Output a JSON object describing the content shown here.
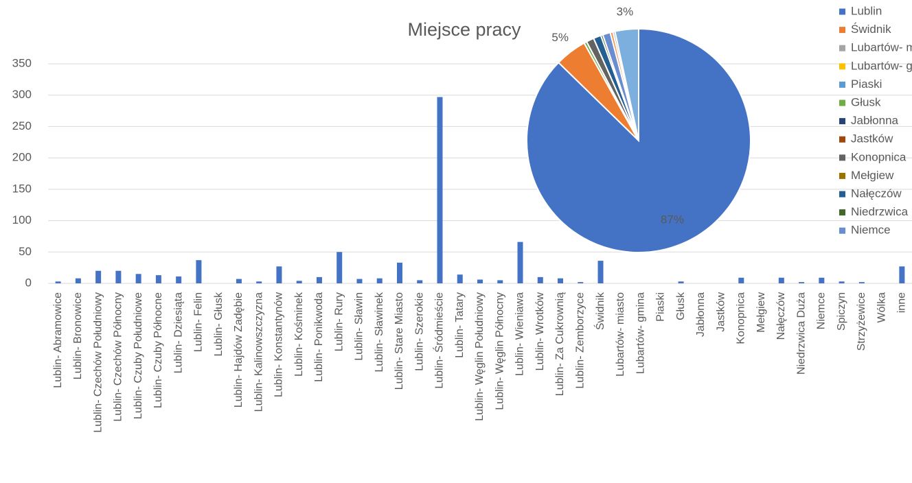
{
  "chart_data": [
    {
      "type": "bar",
      "categories": [
        "Lublin- Abramowice",
        "Lublin- Bronowice",
        "Lublin- Czechów Południowy",
        "Lublin- Czechów Północny",
        "Lublin- Czuby Południowe",
        "Lublin- Czuby Północne",
        "Lublin- Dziesiąta",
        "Lublin- Felin",
        "Lublin- Głusk",
        "Lublin- Hajdów Zadębie",
        "Lublin- Kalinowszczyzna",
        "Lublin- Konstantynów",
        "Lublin- Kośminek",
        "Lublin- Ponikwoda",
        "Lublin- Rury",
        "Lublin- Sławin",
        "Lublin- Sławinek",
        "Lublin- Stare Miasto",
        "Lublin- Szerokie",
        "Lublin- Śródmieście",
        "Lublin- Tatary",
        "Lublin- Węglin Południowy",
        "Lublin- Węglin Północny",
        "Lublin- Wieniawa",
        "Lublin- Wrotków",
        "Lublin- Za Cukrownią",
        "Lublin- Zemborzyce",
        "Świdnik",
        "Lubartów- miasto",
        "Lubartów- gmina",
        "Piaski",
        "Głusk",
        "Jabłonna",
        "Jastków",
        "Konopnica",
        "Mełgiew",
        "Nałęczów",
        "Niedrzwica Duża",
        "Niemce",
        "Spiczyn",
        "Strzyżewice",
        "Wólka",
        "inne"
      ],
      "values": [
        3,
        8,
        20,
        20,
        15,
        13,
        11,
        37,
        0,
        7,
        3,
        27,
        4,
        10,
        50,
        7,
        8,
        33,
        5,
        297,
        14,
        6,
        5,
        66,
        10,
        8,
        2,
        36,
        0,
        0,
        0,
        3,
        0,
        0,
        9,
        0,
        9,
        2,
        9,
        3,
        2,
        0,
        27
      ],
      "color": "#4472c4",
      "ylim": [
        0,
        400
      ],
      "yticks": [
        0,
        50,
        100,
        150,
        200,
        250,
        300,
        350
      ],
      "grid": true
    },
    {
      "type": "pie",
      "title": "Miejsce pracy",
      "categories": [
        "Lublin",
        "Świdnik",
        "Lubartów- miasto",
        "Lubartów- gmina",
        "Piaski",
        "Głusk",
        "Jabłonna",
        "Jastków",
        "Konopnica",
        "Mełgiew",
        "Nałęczów",
        "Niedrzwica Duża",
        "Niemce",
        null,
        null,
        null,
        null
      ],
      "values": [
        87.3,
        4.6,
        0,
        0,
        0,
        0.4,
        0,
        0,
        1.1,
        0,
        1.1,
        0.3,
        1.1,
        0.4,
        0.3,
        0,
        3.4
      ],
      "value_labels": [
        "87%",
        "5%",
        null,
        null,
        null,
        null,
        null,
        null,
        null,
        null,
        null,
        null,
        null,
        null,
        null,
        null,
        "3%"
      ],
      "colors": [
        "#4472c4",
        "#ed7d31",
        "#a5a5a5",
        "#ffc000",
        "#5b9bd5",
        "#70ad47",
        "#264478",
        "#9e480e",
        "#636363",
        "#997300",
        "#255e91",
        "#43682b",
        "#698ed0",
        "#f1975a",
        "#b7b7b7",
        "#ffcd33",
        "#7cafdd"
      ],
      "legend": "right"
    }
  ]
}
